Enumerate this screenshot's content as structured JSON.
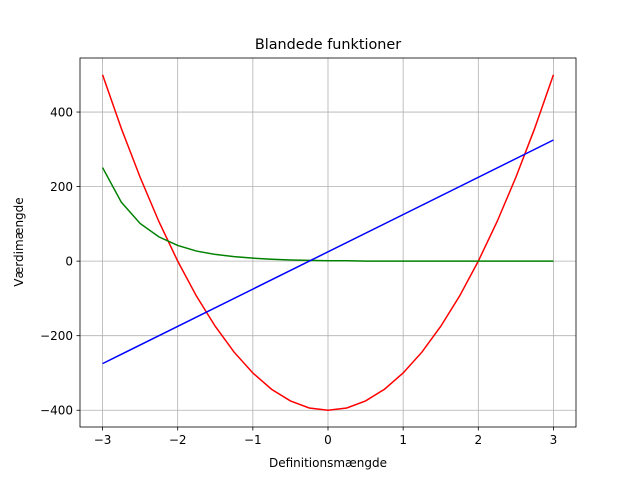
{
  "chart_data": {
    "type": "line",
    "title": "Blandede funktioner",
    "xlabel": "Definitionsmængde",
    "ylabel": "Værdimængde",
    "xlim": [
      -3.3,
      3.3
    ],
    "ylim": [
      -445,
      545
    ],
    "grid": true,
    "x_ticks": [
      {
        "value": -3,
        "label": "−3"
      },
      {
        "value": -2,
        "label": "−2"
      },
      {
        "value": -1,
        "label": "−1"
      },
      {
        "value": 0,
        "label": "0"
      },
      {
        "value": 1,
        "label": "1"
      },
      {
        "value": 2,
        "label": "2"
      },
      {
        "value": 3,
        "label": "3"
      }
    ],
    "y_ticks": [
      {
        "value": -400,
        "label": "−400"
      },
      {
        "value": -200,
        "label": "−200"
      },
      {
        "value": 0,
        "label": "0"
      },
      {
        "value": 200,
        "label": "200"
      },
      {
        "value": 400,
        "label": "400"
      }
    ],
    "series": [
      {
        "color": "#ff0000",
        "x": [
          -3.0,
          -2.75,
          -2.5,
          -2.25,
          -2.0,
          -1.75,
          -1.5,
          -1.25,
          -1.0,
          -0.75,
          -0.5,
          -0.25,
          0.0,
          0.25,
          0.5,
          0.75,
          1.0,
          1.25,
          1.5,
          1.75,
          2.0,
          2.25,
          2.5,
          2.75,
          3.0
        ],
        "y": [
          500,
          356,
          225,
          106,
          0,
          -94,
          -175,
          -244,
          -300,
          -344,
          -375,
          -394,
          -400,
          -394,
          -375,
          -344,
          -300,
          -244,
          -175,
          -94,
          0,
          106,
          225,
          356,
          500
        ]
      },
      {
        "color": "#008000",
        "x": [
          -3.0,
          -2.75,
          -2.5,
          -2.25,
          -2.0,
          -1.75,
          -1.5,
          -1.25,
          -1.0,
          -0.75,
          -0.5,
          -0.25,
          0.0,
          0.25,
          0.5,
          0.75,
          1.0,
          1.25,
          1.5,
          1.75,
          2.0,
          2.25,
          2.5,
          2.75,
          3.0
        ],
        "y": [
          251,
          158,
          101,
          65,
          42,
          27,
          18,
          12,
          8,
          5,
          3,
          2,
          1,
          1,
          0,
          0,
          0,
          0,
          0,
          0,
          0,
          0,
          0,
          0,
          0
        ]
      },
      {
        "color": "#0000ff",
        "x": [
          -3.0,
          3.0
        ],
        "y": [
          -275,
          325
        ]
      }
    ]
  }
}
